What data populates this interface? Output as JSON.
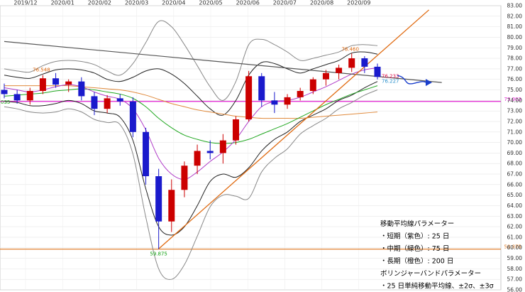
{
  "chart_data": {
    "type": "candlestick",
    "ylim": [
      56.0,
      83.0
    ],
    "y_ticks": [
      "56.00",
      "57.00",
      "58.00",
      "59.00",
      "60.00",
      "61.00",
      "62.00",
      "63.00",
      "64.00",
      "65.00",
      "66.00",
      "67.00",
      "68.00",
      "69.00",
      "70.00",
      "71.00",
      "72.00",
      "73.00",
      "74.00",
      "75.00",
      "76.00",
      "77.00",
      "78.00",
      "79.00",
      "80.00",
      "81.00",
      "82.00",
      "83.00"
    ],
    "x_ticks": [
      "2019/12",
      "2020/01",
      "2020/02",
      "2020/03",
      "2020/04",
      "2020/05",
      "2020/06",
      "2020/07",
      "2020/08",
      "2020/09"
    ],
    "grid": true,
    "colors": {
      "up": "#cc0000",
      "down": "#1a1acc",
      "ma_short": "#b03cc8",
      "ma_mid": "#22a822",
      "ma_long": "#e08a3c",
      "bands": "#333333",
      "trendline": "#e06a10",
      "resistance": "#555555",
      "hline_magenta": "#e020d0",
      "hline_orange": "#e08030",
      "forecast": "#1a3fcc"
    },
    "candles_weekly": [
      {
        "o": 75.0,
        "h": 75.6,
        "l": 74.2,
        "c": 74.6
      },
      {
        "o": 74.6,
        "h": 75.0,
        "l": 73.7,
        "c": 74.0
      },
      {
        "o": 74.0,
        "h": 75.2,
        "l": 73.6,
        "c": 74.9
      },
      {
        "o": 74.9,
        "h": 76.4,
        "l": 74.6,
        "c": 76.1
      },
      {
        "o": 76.1,
        "h": 76.6,
        "l": 75.2,
        "c": 75.5
      },
      {
        "o": 75.5,
        "h": 76.0,
        "l": 74.8,
        "c": 75.8
      },
      {
        "o": 75.8,
        "h": 76.2,
        "l": 74.0,
        "c": 74.4
      },
      {
        "o": 74.4,
        "h": 74.8,
        "l": 72.6,
        "c": 73.2
      },
      {
        "o": 73.2,
        "h": 74.5,
        "l": 72.8,
        "c": 74.2
      },
      {
        "o": 74.2,
        "h": 74.6,
        "l": 73.5,
        "c": 73.9
      },
      {
        "o": 73.9,
        "h": 74.3,
        "l": 70.5,
        "c": 71.0
      },
      {
        "o": 71.0,
        "h": 71.4,
        "l": 66.0,
        "c": 66.8
      },
      {
        "o": 66.8,
        "h": 67.5,
        "l": 59.875,
        "c": 62.5
      },
      {
        "o": 62.5,
        "h": 66.5,
        "l": 61.5,
        "c": 65.5
      },
      {
        "o": 65.5,
        "h": 68.2,
        "l": 64.8,
        "c": 67.8
      },
      {
        "o": 67.8,
        "h": 69.8,
        "l": 67.0,
        "c": 69.2
      },
      {
        "o": 69.2,
        "h": 70.2,
        "l": 68.4,
        "c": 69.0
      },
      {
        "o": 69.0,
        "h": 70.8,
        "l": 68.0,
        "c": 70.2
      },
      {
        "o": 70.2,
        "h": 72.5,
        "l": 69.8,
        "c": 72.2
      },
      {
        "o": 72.2,
        "h": 76.8,
        "l": 72.0,
        "c": 76.3
      },
      {
        "o": 76.3,
        "h": 76.6,
        "l": 73.4,
        "c": 74.0
      },
      {
        "o": 74.0,
        "h": 74.8,
        "l": 72.8,
        "c": 73.6
      },
      {
        "o": 73.6,
        "h": 74.6,
        "l": 73.2,
        "c": 74.3
      },
      {
        "o": 74.3,
        "h": 75.2,
        "l": 74.0,
        "c": 74.9
      },
      {
        "o": 74.9,
        "h": 76.2,
        "l": 74.6,
        "c": 76.0
      },
      {
        "o": 76.0,
        "h": 76.9,
        "l": 75.4,
        "c": 76.6
      },
      {
        "o": 76.6,
        "h": 77.4,
        "l": 76.0,
        "c": 77.1
      },
      {
        "o": 77.1,
        "h": 78.46,
        "l": 76.7,
        "c": 78.0
      },
      {
        "o": 78.0,
        "h": 78.2,
        "l": 76.6,
        "c": 77.2
      },
      {
        "o": 77.2,
        "h": 77.5,
        "l": 76.0,
        "c": 76.233
      }
    ],
    "ma_short": [
      75.2,
      75.0,
      74.8,
      75.0,
      75.3,
      75.5,
      75.3,
      74.8,
      74.4,
      74.1,
      73.2,
      71.2,
      68.5,
      67.0,
      66.5,
      67.2,
      68.2,
      69.1,
      70.3,
      72.0,
      73.4,
      73.9,
      74.0,
      74.3,
      74.8,
      75.3,
      75.9,
      76.5,
      76.9,
      77.1
    ],
    "ma_mid": [
      74.4,
      74.5,
      74.6,
      74.7,
      74.9,
      75.0,
      75.1,
      75.0,
      74.8,
      74.6,
      74.2,
      73.4,
      72.3,
      71.4,
      70.7,
      70.3,
      70.0,
      69.9,
      70.0,
      70.3,
      70.8,
      71.3,
      71.8,
      72.4,
      73.0,
      73.6,
      74.1,
      74.6,
      75.0,
      75.4
    ],
    "ma_long": [
      75.4,
      75.4,
      75.4,
      75.4,
      75.4,
      75.4,
      75.3,
      75.2,
      75.1,
      75.0,
      74.8,
      74.5,
      74.1,
      73.7,
      73.4,
      73.1,
      72.9,
      72.7,
      72.5,
      72.4,
      72.3,
      72.3,
      72.3,
      72.3,
      72.4,
      72.5,
      72.6,
      72.7,
      72.8,
      72.9
    ],
    "band_upper2": [
      76.4,
      76.2,
      76.1,
      76.5,
      76.9,
      77.0,
      76.9,
      76.6,
      76.0,
      75.8,
      76.2,
      76.8,
      77.0,
      76.5,
      75.6,
      74.4,
      73.2,
      72.6,
      74.0,
      76.4,
      77.6,
      77.5,
      77.0,
      76.6,
      77.0,
      77.4,
      77.8,
      78.5,
      78.6,
      78.4
    ],
    "band_lower2": [
      73.9,
      73.8,
      73.5,
      73.5,
      73.7,
      74.0,
      73.7,
      73.0,
      72.8,
      72.4,
      70.2,
      65.6,
      62.0,
      61.2,
      62.0,
      64.0,
      66.3,
      67.0,
      66.7,
      67.6,
      69.2,
      70.3,
      71.0,
      72.0,
      72.6,
      73.2,
      74.0,
      74.5,
      75.2,
      75.8
    ],
    "band_upper3": [
      77.0,
      76.8,
      76.7,
      77.3,
      77.7,
      77.8,
      77.7,
      77.4,
      76.8,
      76.4,
      77.5,
      79.5,
      81.5,
      81.0,
      79.3,
      77.3,
      75.3,
      74.0,
      75.8,
      79.3,
      79.8,
      79.3,
      78.6,
      77.8,
      78.0,
      78.3,
      78.6,
      79.2,
      79.3,
      79.2
    ],
    "band_lower3": [
      73.4,
      73.2,
      72.9,
      72.8,
      72.9,
      73.2,
      72.9,
      72.2,
      71.9,
      71.7,
      68.9,
      62.9,
      58.0,
      57.0,
      58.4,
      61.1,
      63.9,
      65.0,
      64.9,
      64.7,
      67.2,
      68.5,
      69.4,
      70.8,
      71.6,
      72.3,
      73.2,
      73.8,
      74.5,
      75.0
    ],
    "resistance_line": {
      "from": [
        0,
        79.6
      ],
      "to": [
        34,
        75.7
      ]
    },
    "support_line": {
      "from": [
        12,
        59.9
      ],
      "to": [
        33,
        82.6
      ]
    },
    "hline_magenta": 73.903,
    "hline_orange": 59.875,
    "annotations": [
      {
        "text": "76.548",
        "color": "#e06a10"
      },
      {
        "text": "59.875",
        "color": "#10a010"
      },
      {
        "text": "78.460",
        "color": "#e06a10"
      },
      {
        "text": "76.233",
        "color": "#e0104a"
      },
      {
        "text": "76.227",
        "color": "#2a90cc"
      },
      {
        "text": "73.903",
        "color": "#e020d0"
      },
      {
        "text": "59.875",
        "color": "#e08030"
      }
    ],
    "left_edge_label": "035",
    "notes": [
      "移動平均線パラメーター",
      "・短期（紫色）: 25 日",
      "・中期（緑色）: 75 日",
      "・長期（橙色）: 200 日",
      "ボリンジャーバンドパラメーター",
      "・25 日単純移動平均線、±2σ、±3σ"
    ]
  }
}
